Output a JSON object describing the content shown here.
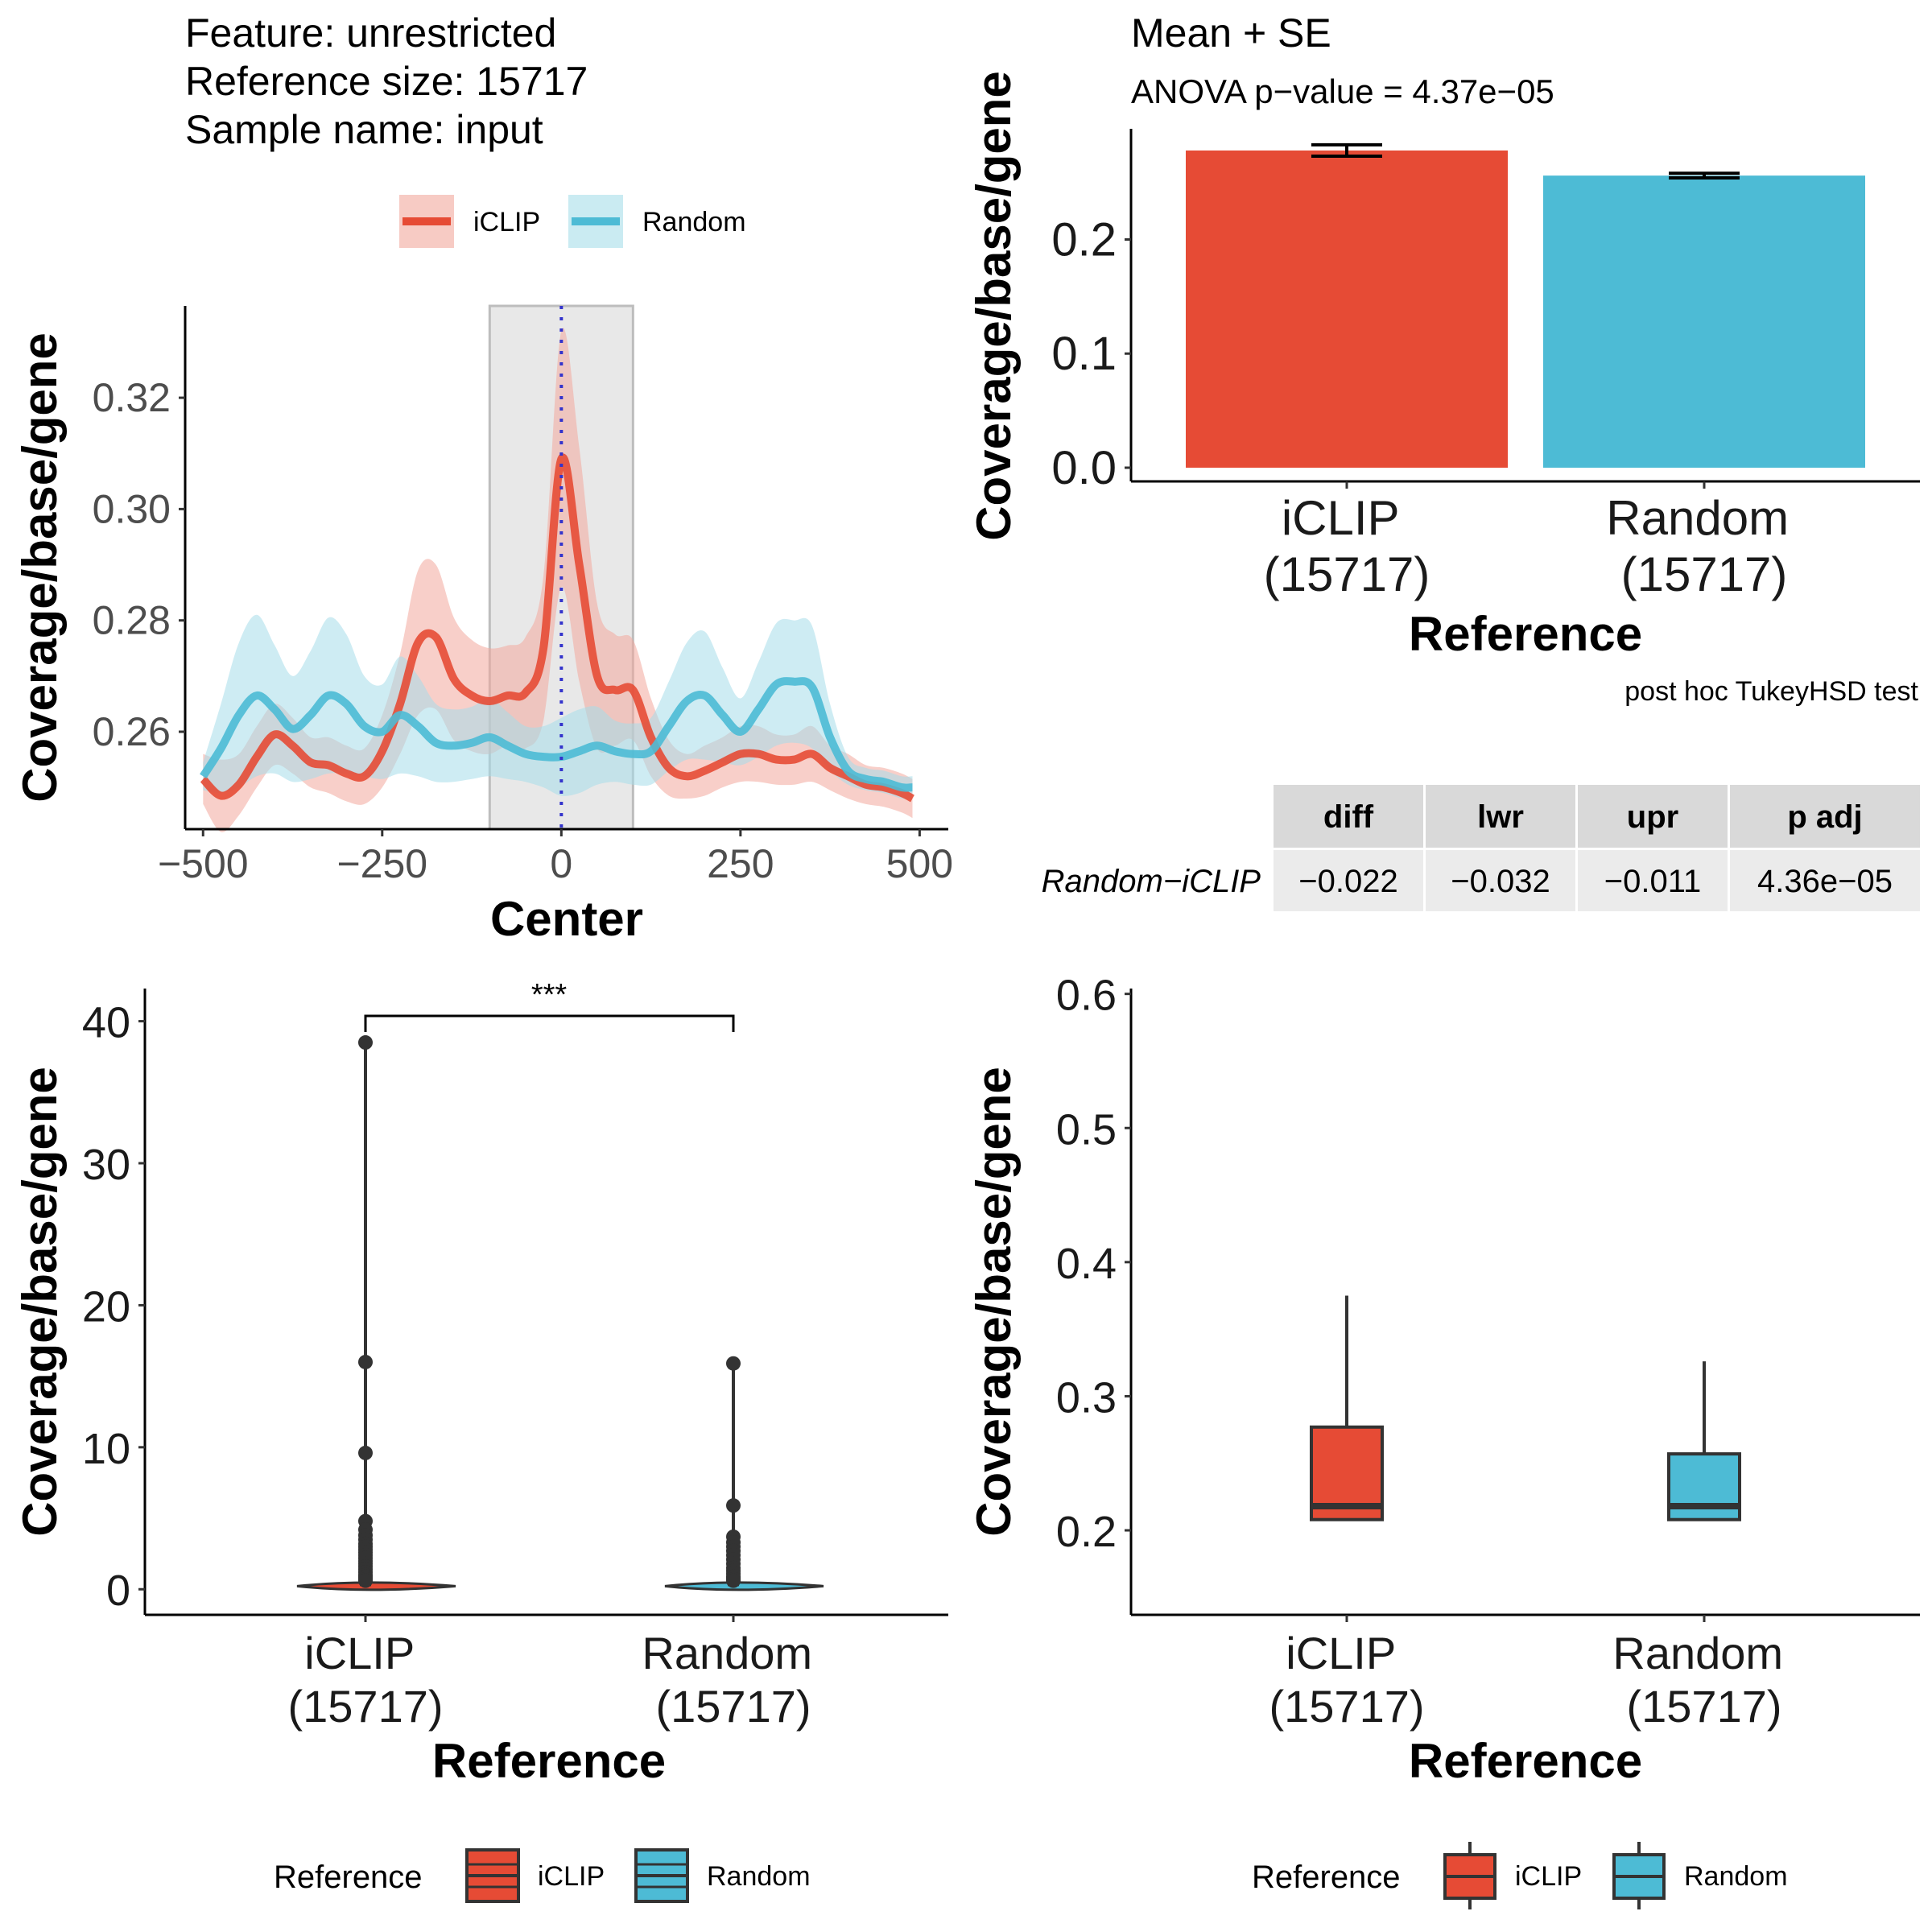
{
  "colors": {
    "iclip": "#E64B35",
    "random": "#4DBBD5",
    "axis": "#000000",
    "ribbon_iclip": "#F2A89C",
    "ribbon_random": "#A6DDEA",
    "center_shade": "#E8E8E8",
    "center_line": "#3333CC",
    "table_head": "#D9D9D9",
    "table_body": "#EBEBEB"
  },
  "header": {
    "feature": "Feature: unrestricted",
    "reference_size": "Reference size: 15717",
    "sample_name": "Sample name: input"
  },
  "legend_top": {
    "items": [
      "iCLIP",
      "Random"
    ]
  },
  "legend_bottom_left": {
    "title": "Reference",
    "items": [
      "iCLIP",
      "Random"
    ]
  },
  "legend_bottom_right": {
    "title": "Reference",
    "items": [
      "iCLIP",
      "Random"
    ]
  },
  "bar_panel": {
    "title": "Mean + SE",
    "subtitle": "ANOVA p−value = 4.37e−05"
  },
  "tukey": {
    "caption": "post hoc TukeyHSD test",
    "columns": [
      "diff",
      "lwr",
      "upr",
      "p adj"
    ],
    "row_label": "Random−iCLIP",
    "row": [
      "−0.022",
      "−0.032",
      "−0.011",
      "4.36e−05"
    ]
  },
  "violin_panel": {
    "significance": "***"
  },
  "chart_data": [
    {
      "type": "line",
      "xlabel": "Center",
      "ylabel": "Coverage/base/gene",
      "xlim": [
        -525,
        540
      ],
      "ylim": [
        0.2425,
        0.3365
      ],
      "xticks": [
        -500,
        -250,
        0,
        250,
        500
      ],
      "yticks": [
        0.26,
        0.28,
        0.3,
        0.32
      ],
      "xtick_labels": [
        "−500",
        "−250",
        "0",
        "250",
        "500"
      ],
      "ytick_labels": [
        "0.26",
        "0.28",
        "0.30",
        "0.32"
      ],
      "highlight_region": [
        -100,
        100
      ],
      "vline": 0,
      "grid": false,
      "legend_position": "top",
      "series": [
        {
          "name": "iCLIP",
          "x": [
            -500,
            -475,
            -450,
            -425,
            -400,
            -375,
            -350,
            -325,
            -300,
            -275,
            -250,
            -225,
            -200,
            -175,
            -150,
            -125,
            -100,
            -75,
            -50,
            -25,
            0,
            25,
            50,
            75,
            100,
            125,
            150,
            175,
            200,
            225,
            250,
            275,
            300,
            325,
            350,
            375,
            400,
            425,
            450,
            475,
            490
          ],
          "y": [
            0.2515,
            0.2485,
            0.2505,
            0.2555,
            0.2595,
            0.2575,
            0.2545,
            0.254,
            0.2525,
            0.252,
            0.2565,
            0.265,
            0.276,
            0.277,
            0.2695,
            0.2665,
            0.2655,
            0.2665,
            0.267,
            0.275,
            0.309,
            0.29,
            0.27,
            0.2675,
            0.2675,
            0.259,
            0.2535,
            0.252,
            0.253,
            0.2545,
            0.256,
            0.256,
            0.255,
            0.255,
            0.256,
            0.2535,
            0.252,
            0.2505,
            0.25,
            0.249,
            0.248
          ],
          "lower": [
            0.247,
            0.242,
            0.245,
            0.25,
            0.254,
            0.2525,
            0.25,
            0.249,
            0.2475,
            0.247,
            0.25,
            0.256,
            0.263,
            0.264,
            0.2585,
            0.2565,
            0.256,
            0.2575,
            0.257,
            0.262,
            0.286,
            0.269,
            0.257,
            0.2575,
            0.2585,
            0.252,
            0.2485,
            0.248,
            0.2485,
            0.25,
            0.251,
            0.251,
            0.2505,
            0.2505,
            0.251,
            0.2495,
            0.248,
            0.247,
            0.2465,
            0.2455,
            0.2445
          ],
          "upper": [
            0.256,
            0.255,
            0.256,
            0.261,
            0.265,
            0.2625,
            0.259,
            0.259,
            0.2575,
            0.257,
            0.263,
            0.274,
            0.289,
            0.29,
            0.2805,
            0.2765,
            0.275,
            0.2755,
            0.277,
            0.288,
            0.332,
            0.311,
            0.283,
            0.2775,
            0.2765,
            0.266,
            0.2585,
            0.256,
            0.2575,
            0.259,
            0.261,
            0.261,
            0.2595,
            0.2595,
            0.261,
            0.2575,
            0.256,
            0.254,
            0.2535,
            0.2525,
            0.2515
          ]
        },
        {
          "name": "Random",
          "x": [
            -500,
            -475,
            -450,
            -425,
            -400,
            -375,
            -350,
            -325,
            -300,
            -275,
            -250,
            -225,
            -200,
            -175,
            -150,
            -125,
            -100,
            -75,
            -50,
            -25,
            0,
            25,
            50,
            75,
            100,
            125,
            150,
            175,
            200,
            225,
            250,
            275,
            300,
            325,
            350,
            375,
            400,
            425,
            450,
            475,
            490
          ],
          "y": [
            0.252,
            0.257,
            0.263,
            0.2665,
            0.264,
            0.2605,
            0.263,
            0.2665,
            0.265,
            0.261,
            0.26,
            0.263,
            0.261,
            0.258,
            0.2575,
            0.258,
            0.259,
            0.2575,
            0.256,
            0.2555,
            0.2555,
            0.2565,
            0.2575,
            0.2565,
            0.256,
            0.2565,
            0.261,
            0.2655,
            0.2665,
            0.263,
            0.26,
            0.264,
            0.2685,
            0.269,
            0.268,
            0.259,
            0.253,
            0.2515,
            0.251,
            0.25,
            0.25
          ],
          "lower": [
            0.2495,
            0.249,
            0.25,
            0.252,
            0.2525,
            0.251,
            0.2515,
            0.2525,
            0.2525,
            0.252,
            0.2515,
            0.2525,
            0.252,
            0.251,
            0.251,
            0.2515,
            0.252,
            0.2515,
            0.251,
            0.25,
            0.2485,
            0.249,
            0.2505,
            0.251,
            0.2505,
            0.2505,
            0.253,
            0.255,
            0.255,
            0.2545,
            0.254,
            0.2555,
            0.2575,
            0.258,
            0.257,
            0.253,
            0.2505,
            0.2495,
            0.249,
            0.248,
            0.248
          ],
          "upper": [
            0.2545,
            0.265,
            0.276,
            0.281,
            0.2755,
            0.27,
            0.2745,
            0.2805,
            0.2775,
            0.27,
            0.2685,
            0.2735,
            0.27,
            0.265,
            0.264,
            0.2645,
            0.266,
            0.2635,
            0.261,
            0.261,
            0.2625,
            0.264,
            0.2645,
            0.262,
            0.2615,
            0.2625,
            0.269,
            0.276,
            0.278,
            0.2715,
            0.266,
            0.2725,
            0.2795,
            0.28,
            0.279,
            0.265,
            0.2555,
            0.2535,
            0.253,
            0.252,
            0.252
          ]
        }
      ]
    },
    {
      "type": "bar",
      "title": "Mean + SE",
      "subtitle": "ANOVA p−value = 4.37e−05",
      "categories": [
        "iCLIP\n(15717)",
        "Random\n(15717)"
      ],
      "values": [
        0.278,
        0.256
      ],
      "se": [
        0.005,
        0.002
      ],
      "xlabel": "Reference",
      "ylabel": "Coverage/base/gene",
      "ylim": [
        -0.012,
        0.297
      ],
      "yticks": [
        0.0,
        0.1,
        0.2
      ],
      "ytick_labels": [
        "0.0",
        "0.1",
        "0.2"
      ]
    },
    {
      "type": "violin",
      "categories": [
        "iCLIP\n(15717)",
        "Random\n(15717)"
      ],
      "medians": [
        0.22,
        0.22
      ],
      "outliers": [
        [
          38.5,
          16.0,
          9.6,
          4.8,
          4.2,
          3.8,
          3.5,
          3.2,
          3.0,
          2.8,
          2.6,
          2.4,
          2.2,
          2.0,
          1.8,
          1.6,
          1.4,
          1.2,
          1.0,
          0.9,
          0.8,
          0.7,
          0.6
        ],
        [
          15.9,
          5.9,
          3.7,
          3.3,
          3.0,
          2.7,
          2.4,
          2.1,
          1.8,
          1.5,
          1.3,
          1.1,
          0.9,
          0.8,
          0.7,
          0.6
        ]
      ],
      "significance": "***",
      "xlabel": "Reference",
      "ylabel": "Coverage/base/gene",
      "ylim": [
        -1.8,
        42.3
      ],
      "yticks": [
        0,
        10,
        20,
        30,
        40
      ],
      "ytick_labels": [
        "0",
        "10",
        "20",
        "30",
        "40"
      ]
    },
    {
      "type": "box",
      "categories": [
        "iCLIP\n(15717)",
        "Random\n(15717)"
      ],
      "boxes": [
        {
          "lower_whisker": 0.208,
          "q1": 0.208,
          "median": 0.218,
          "q3": 0.277,
          "upper_whisker": 0.375
        },
        {
          "lower_whisker": 0.208,
          "q1": 0.208,
          "median": 0.218,
          "q3": 0.257,
          "upper_whisker": 0.326
        }
      ],
      "xlabel": "Reference",
      "ylabel": "Coverage/base/gene",
      "ylim": [
        0.137,
        0.604
      ],
      "yticks": [
        0.2,
        0.3,
        0.4,
        0.5,
        0.6
      ],
      "ytick_labels": [
        "0.2",
        "0.3",
        "0.4",
        "0.5",
        "0.6"
      ]
    }
  ]
}
